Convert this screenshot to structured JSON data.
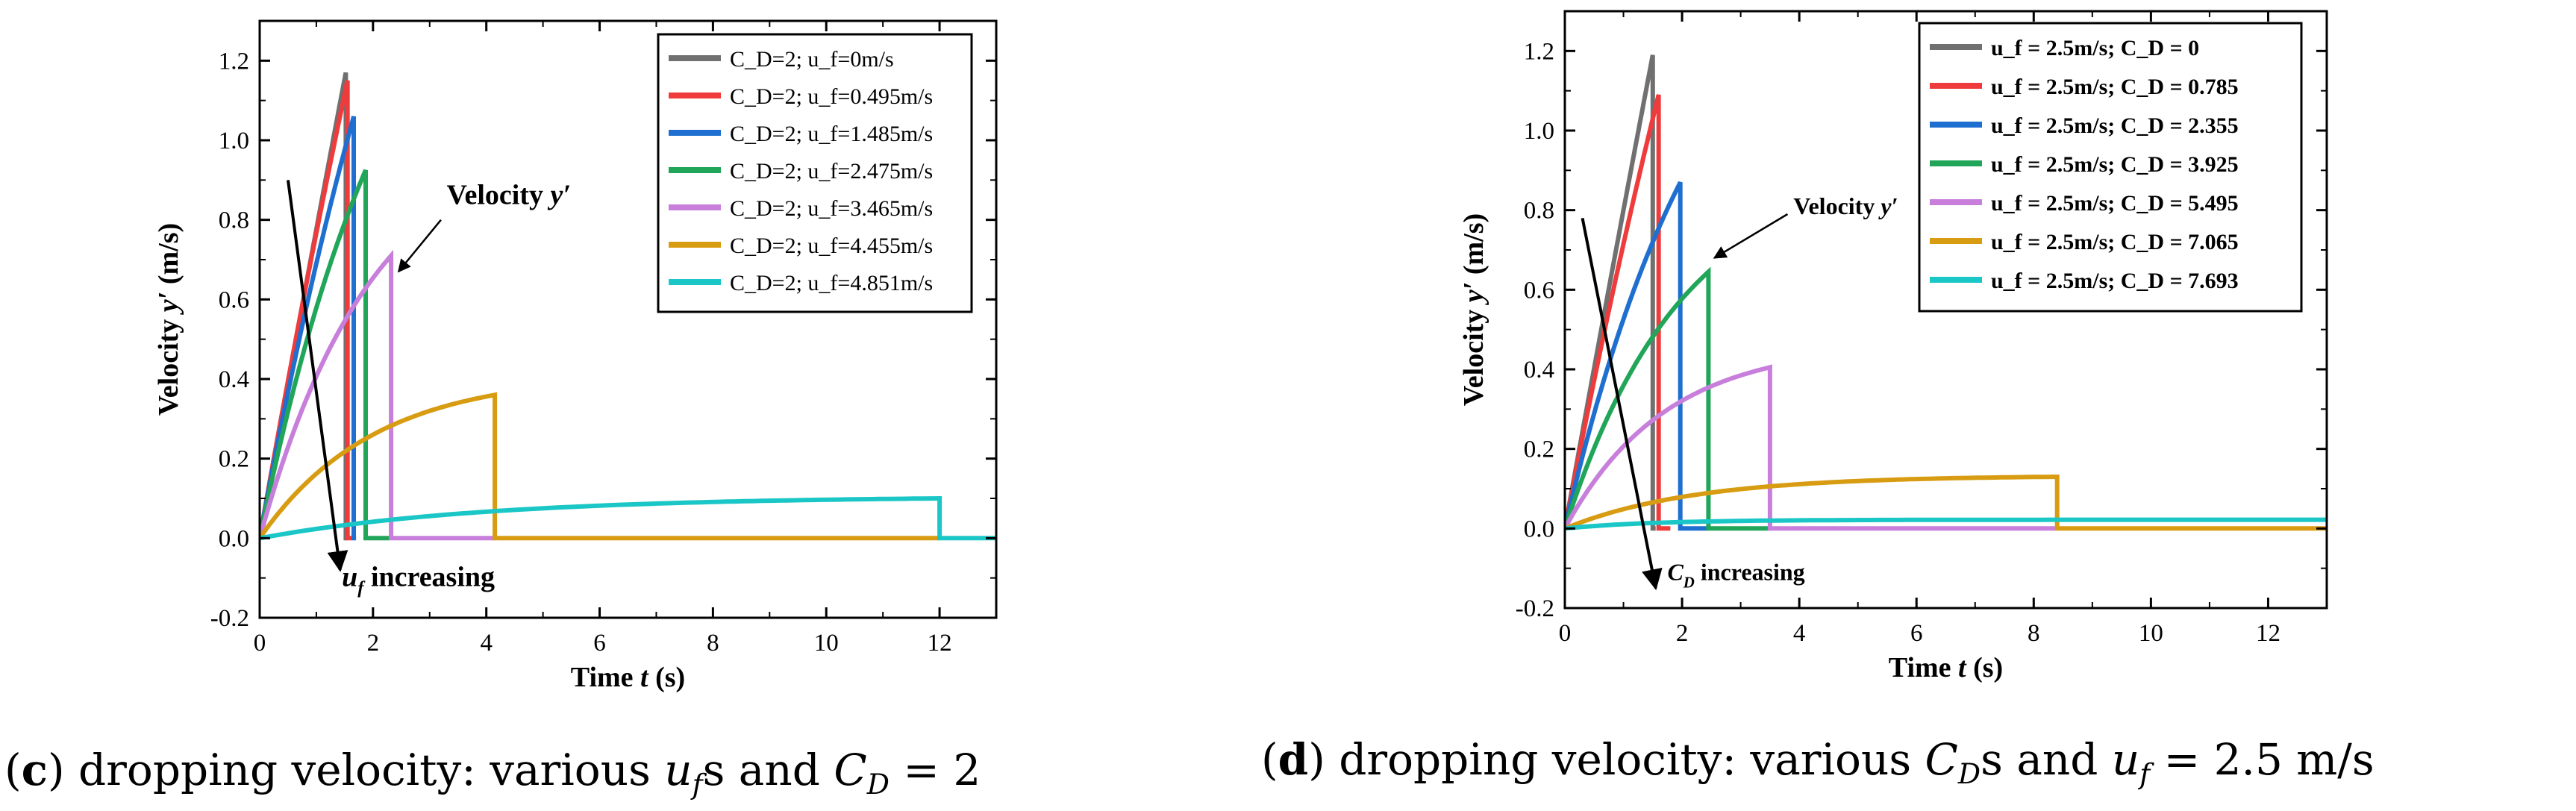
{
  "chart_data": [
    {
      "type": "line",
      "panel": "c",
      "title": "",
      "xlabel_main": "Time",
      "xlabel_var": "t",
      "xlabel_unit": "(s)",
      "ylabel_main": "Velocity",
      "ylabel_var": "y′",
      "ylabel_unit": "(m/s)",
      "xlim": [
        0,
        13
      ],
      "ylim": [
        -0.2,
        1.3
      ],
      "xticks": [
        0,
        2,
        4,
        6,
        8,
        10,
        12
      ],
      "yticks": [
        -0.2,
        0.0,
        0.2,
        0.4,
        0.6,
        0.8,
        1.0,
        1.2
      ],
      "legend_position": "top-right",
      "series": [
        {
          "name": "C_D=2; u_f=0m/s",
          "color": "#707070",
          "v_end": 1.17,
          "t_end": 1.52,
          "tau": 30,
          "t_max": 1.55
        },
        {
          "name": "C_D=2; u_f=0.495m/s",
          "color": "#ef3b3b",
          "v_end": 1.15,
          "t_end": 1.55,
          "tau": 8,
          "t_max": 1.62
        },
        {
          "name": "C_D=2; u_f=1.485m/s",
          "color": "#1e6fcf",
          "v_end": 1.06,
          "t_end": 1.66,
          "tau": 4,
          "t_max": 1.7
        },
        {
          "name": "C_D=2; u_f=2.475m/s",
          "color": "#21a659",
          "v_end": 0.925,
          "t_end": 1.87,
          "tau": 2.5,
          "t_max": 2.3
        },
        {
          "name": "C_D=2; u_f=3.465m/s",
          "color": "#c77fdb",
          "v_end": 0.71,
          "t_end": 2.32,
          "tau": 2.0,
          "t_max": 4.15
        },
        {
          "name": "C_D=2; u_f=4.455m/s",
          "color": "#d89c12",
          "v_end": 0.36,
          "t_end": 4.15,
          "tau": 2.0,
          "t_max": 12.0
        },
        {
          "name": "C_D=2; u_f=4.851m/s",
          "color": "#1ac6c6",
          "v_end": 0.1,
          "t_end": 12.0,
          "tau": 4.0,
          "t_max": 13.0
        }
      ],
      "annotations": [
        {
          "text_main": "Velocity ",
          "text_var": "y′",
          "x": 3.3,
          "y": 0.84
        },
        {
          "text_var": "u",
          "text_sub": "f",
          "text_after": " increasing",
          "x": 1.45,
          "y": -0.12
        }
      ],
      "trend_arrow": {
        "from": [
          0.5,
          0.9
        ],
        "to": [
          1.42,
          -0.08
        ]
      },
      "pointer_arrow": {
        "from": [
          3.2,
          0.8
        ],
        "to": [
          2.45,
          0.67
        ]
      },
      "caption": {
        "label": "c",
        "text": " dropping velocity: various ",
        "math1": "u",
        "math1_sub": "f",
        "after1": "s and ",
        "math2": "C",
        "math2_sub": "D",
        "after2": " = 2"
      }
    },
    {
      "type": "line",
      "panel": "d",
      "title": "",
      "xlabel_main": "Time",
      "xlabel_var": "t",
      "xlabel_unit": "(s)",
      "ylabel_main": "Velocity",
      "ylabel_var": "y′",
      "ylabel_unit": "(m/s)",
      "xlim": [
        0,
        13
      ],
      "ylim": [
        -0.2,
        1.3
      ],
      "xticks": [
        0,
        2,
        4,
        6,
        8,
        10,
        12
      ],
      "yticks": [
        -0.2,
        0.0,
        0.2,
        0.4,
        0.6,
        0.8,
        1.0,
        1.2
      ],
      "legend_position": "top-right",
      "series": [
        {
          "name": "u_f = 2.5m/s; C_D = 0",
          "color": "#707070",
          "v_end": 1.19,
          "t_end": 1.5,
          "tau": 30,
          "t_max": 1.55
        },
        {
          "name": "u_f = 2.5m/s; C_D = 0.785",
          "color": "#ef3b3b",
          "v_end": 1.09,
          "t_end": 1.6,
          "tau": 6,
          "t_max": 1.8
        },
        {
          "name": "u_f = 2.5m/s; C_D = 2.355",
          "color": "#1e6fcf",
          "v_end": 0.87,
          "t_end": 1.97,
          "tau": 2.5,
          "t_max": 2.45
        },
        {
          "name": "u_f = 2.5m/s; C_D = 3.925",
          "color": "#21a659",
          "v_end": 0.645,
          "t_end": 2.45,
          "tau": 2.0,
          "t_max": 3.5
        },
        {
          "name": "u_f = 2.5m/s; C_D = 5.495",
          "color": "#c77fdb",
          "v_end": 0.405,
          "t_end": 3.5,
          "tau": 1.7,
          "t_max": 8.4
        },
        {
          "name": "u_f = 2.5m/s; C_D = 7.065",
          "color": "#d89c12",
          "v_end": 0.13,
          "t_end": 8.4,
          "tau": 2.2,
          "t_max": 13.0
        },
        {
          "name": "u_f = 2.5m/s; C_D = 7.693",
          "color": "#1ac6c6",
          "v_end": 0.022,
          "t_end": 13.0,
          "tau": 1.5,
          "t_max": 13.0
        }
      ],
      "annotations": [
        {
          "text_main": "Velocity ",
          "text_var": "y′",
          "x": 3.9,
          "y": 0.79
        },
        {
          "text_var": "C",
          "text_sub": "D",
          "text_after": " increasing",
          "x": 1.75,
          "y": -0.13
        }
      ],
      "trend_arrow": {
        "from": [
          0.3,
          0.78
        ],
        "to": [
          1.55,
          -0.15
        ]
      },
      "pointer_arrow": {
        "from": [
          3.8,
          0.79
        ],
        "to": [
          2.55,
          0.68
        ]
      },
      "caption": {
        "label": "d",
        "text": " dropping velocity: various ",
        "math1": "C",
        "math1_sub": "D",
        "after1": "s and ",
        "math2": "u",
        "math2_sub": "f",
        "after2": " = 2.5 m/s"
      }
    }
  ]
}
